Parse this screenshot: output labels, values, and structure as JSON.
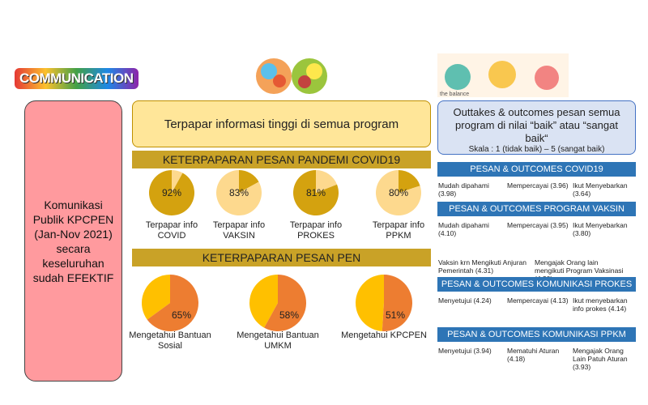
{
  "logo": "COMMUNICATION",
  "summary": {
    "lines": [
      "Komunikasi",
      "Publik KPCPEN",
      "(Jan-Nov 2021)",
      "secara",
      "keseluruhan",
      "sudah EFEKTIF"
    ]
  },
  "exposure": {
    "headline": "Terpapar informasi tinggi di semua program",
    "groups": [
      {
        "title": "KETERPAPARAN PESAN PANDEMI COVID19",
        "pies": [
          {
            "value": 92,
            "label": "92%",
            "caption": "Terpapar info COVID",
            "color": "#d4a20f",
            "rest_color": "#fdd98e"
          },
          {
            "value": 83,
            "label": "83%",
            "caption": "Terpapar info VAKSIN",
            "color": "#fdd98e",
            "rest_color": "#d4a20f"
          },
          {
            "value": 81,
            "label": "81%",
            "caption": "Terpapar info PROKES",
            "color": "#d4a20f",
            "rest_color": "#fdd98e"
          },
          {
            "value": 80,
            "label": "80%",
            "caption": "Terpapar info PPKM",
            "color": "#fdd98e",
            "rest_color": "#d4a20f"
          }
        ]
      },
      {
        "title": "KETERPAPARAN PESAN PEN",
        "pies": [
          {
            "value": 65,
            "label": "65%",
            "caption": "Mengetahui Bantuan Sosial",
            "color": "#ed7d31",
            "rest_color": "#ffc000"
          },
          {
            "value": 58,
            "label": "58%",
            "caption": "Mengetahui Bantuan UMKM",
            "color": "#ed7d31",
            "rest_color": "#ffc000"
          },
          {
            "value": 51,
            "label": "51%",
            "caption": "Mengetahui KPCPEN",
            "color": "#ed7d31",
            "rest_color": "#ffc000"
          }
        ]
      }
    ]
  },
  "outcomes": {
    "image_caption": "the balance",
    "title": "Outtakes & outcomes pesan semua program di nilai “baik” atau “sangat baik“",
    "scale": "Skala : 1 (tidak baik) – 5 (sangat baik)",
    "sections": [
      {
        "title": "PESAN & OUTCOMES COVID19",
        "rows": [
          [
            "Mudah dipahami (3.98)",
            "Mempercayai (3.96)",
            "Ikut Menyebarkan (3.64)"
          ]
        ]
      },
      {
        "title": "PESAN & OUTCOMES PROGRAM VAKSIN",
        "rows": [
          [
            "Mudah dipahami (4.10)",
            "Mempercayai  (3.95)",
            "Ikut Menyebarkan (3.80)"
          ],
          [
            "Vaksin krn Mengikuti Anjuran Pemerintah (4.31)",
            "Mengajak Orang lain mengikuti Program Vaksinasi (4.20)"
          ]
        ]
      },
      {
        "title": "PESAN & OUTCOMES KOMUNIKASI PROKES",
        "rows": [
          [
            "Menyetujui (4.24)",
            "Mempercayai (4.13)",
            "Ikut menyebarkan info prokes (4.14)"
          ]
        ]
      },
      {
        "title": "PESAN & OUTCOMES KOMUNIKASI PPKM",
        "rows": [
          [
            "Menyetujui (3.94)",
            "Mematuhi Aturan (4.18)",
            "Mengajak Orang Lain Patuh Aturan (3.93)"
          ]
        ]
      }
    ]
  }
}
